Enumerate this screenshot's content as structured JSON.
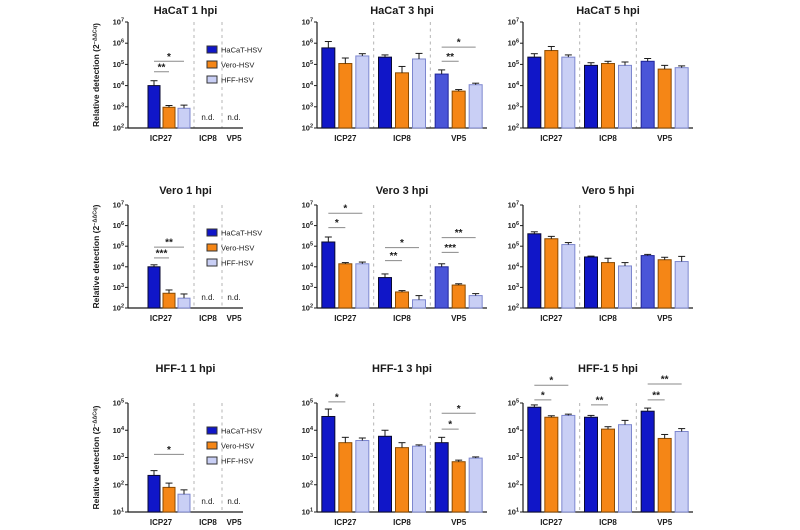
{
  "figure": {
    "background": "#ffffff"
  },
  "colors": {
    "navy": "#1016c8",
    "blue2": "#4a55d8",
    "orange": "#f58616",
    "lavender": "#c9cff5",
    "lavender_border": "#7d87cf",
    "navy_border": "#0a0a30",
    "orange_border": "#8a4a00",
    "blue2_border": "#20259a",
    "axis": "#1a1a1a",
    "separator": "#b5b5b5",
    "sig_line": "#8a8a8a",
    "title": "#2b2b2b"
  },
  "series_order": [
    "HaCaT-HSV",
    "Vero-HSV",
    "HFF-HSV"
  ],
  "legend": {
    "items": [
      {
        "label": "HaCaT-HSV",
        "color": "navy"
      },
      {
        "label": "Vero-HSV",
        "color": "orange"
      },
      {
        "label": "HFF-HSV",
        "color": "lavender"
      }
    ]
  },
  "ylabel": {
    "text": "Relative detection (2",
    "sup": "−ΔΔCq",
    "close": ")"
  },
  "nd_label": "n.d.",
  "chart_data": [
    {
      "type": "bar",
      "title": "HaCaT 1 hpi",
      "log_ylim": [
        2,
        7
      ],
      "show_legend": true,
      "show_ylabel": true,
      "categories": [
        "ICP27",
        "ICP8",
        "VP5"
      ],
      "groups": [
        {
          "name": "ICP27",
          "bars": [
            [
              "navy",
              10000.0,
              17000.0
            ],
            [
              "orange",
              950.0,
              1150.0
            ],
            [
              "lavender",
              850.0,
              1200.0
            ]
          ]
        },
        {
          "name": "ICP8",
          "nd": true,
          "bars": []
        },
        {
          "name": "VP5",
          "nd": true,
          "bars": []
        }
      ],
      "sig": [
        {
          "group": 0,
          "from": 0,
          "to": 1,
          "label": "**",
          "y": 45000.0
        },
        {
          "group": 0,
          "from": 0,
          "to": 2,
          "label": "*",
          "y": 140000.0
        }
      ]
    },
    {
      "type": "bar",
      "title": "HaCaT 3 hpi",
      "log_ylim": [
        2,
        7
      ],
      "show_legend": false,
      "show_ylabel": false,
      "categories": [
        "ICP27",
        "ICP8",
        "VP5"
      ],
      "groups": [
        {
          "name": "ICP27",
          "bars": [
            [
              "navy",
              600000.0,
              1200000.0
            ],
            [
              "orange",
              110000.0,
              200000.0
            ],
            [
              "lavender",
              250000.0,
              320000.0
            ]
          ]
        },
        {
          "name": "ICP8",
          "bars": [
            [
              "navy",
              220000.0,
              280000.0
            ],
            [
              "orange",
              40000.0,
              80000.0
            ],
            [
              "lavender",
              180000.0,
              330000.0
            ]
          ]
        },
        {
          "name": "VP5",
          "bars": [
            [
              "blue2",
              35000.0,
              55000.0
            ],
            [
              "orange",
              5500.0,
              6500.0
            ],
            [
              "lavender",
              11000.0,
              13000.0
            ]
          ]
        }
      ],
      "sig": [
        {
          "group": 2,
          "from": 0,
          "to": 1,
          "label": "**",
          "y": 140000.0
        },
        {
          "group": 2,
          "from": 0,
          "to": 2,
          "label": "*",
          "y": 650000.0
        }
      ]
    },
    {
      "type": "bar",
      "title": "HaCaT 5 hpi",
      "log_ylim": [
        2,
        7
      ],
      "show_legend": false,
      "show_ylabel": false,
      "categories": [
        "ICP27",
        "ICP8",
        "VP5"
      ],
      "groups": [
        {
          "name": "ICP27",
          "bars": [
            [
              "navy",
              220000.0,
              320000.0
            ],
            [
              "orange",
              450000.0,
              700000.0
            ],
            [
              "lavender",
              220000.0,
              280000.0
            ]
          ]
        },
        {
          "name": "ICP8",
          "bars": [
            [
              "navy",
              90000.0,
              120000.0
            ],
            [
              "orange",
              110000.0,
              140000.0
            ],
            [
              "lavender",
              90000.0,
              130000.0
            ]
          ]
        },
        {
          "name": "VP5",
          "bars": [
            [
              "blue2",
              140000.0,
              190000.0
            ],
            [
              "orange",
              60000.0,
              90000.0
            ],
            [
              "lavender",
              70000.0,
              85000.0
            ]
          ]
        }
      ],
      "sig": []
    },
    {
      "type": "bar",
      "title": "Vero 1 hpi",
      "log_ylim": [
        2,
        7
      ],
      "show_legend": true,
      "show_ylabel": true,
      "categories": [
        "ICP27",
        "ICP8",
        "VP5"
      ],
      "groups": [
        {
          "name": "ICP27",
          "bars": [
            [
              "navy",
              10000.0,
              12500.0
            ],
            [
              "orange",
              520.0,
              750.0
            ],
            [
              "lavender",
              300.0,
              480.0
            ]
          ]
        },
        {
          "name": "ICP8",
          "nd": true,
          "bars": []
        },
        {
          "name": "VP5",
          "nd": true,
          "bars": []
        }
      ],
      "sig": [
        {
          "group": 0,
          "from": 0,
          "to": 1,
          "label": "***",
          "y": 27000.0
        },
        {
          "group": 0,
          "from": 0,
          "to": 2,
          "label": "**",
          "y": 90000.0
        }
      ]
    },
    {
      "type": "bar",
      "title": "Vero 3 hpi",
      "log_ylim": [
        2,
        7
      ],
      "show_legend": false,
      "show_ylabel": false,
      "categories": [
        "ICP27",
        "ICP8",
        "VP5"
      ],
      "groups": [
        {
          "name": "ICP27",
          "bars": [
            [
              "navy",
              160000.0,
              280000.0
            ],
            [
              "orange",
              14000.0,
              16000.0
            ],
            [
              "lavender",
              14000.0,
              17000.0
            ]
          ]
        },
        {
          "name": "ICP8",
          "bars": [
            [
              "navy",
              3000.0,
              4500.0
            ],
            [
              "orange",
              600.0,
              700.0
            ],
            [
              "lavender",
              250.0,
              400.0
            ]
          ]
        },
        {
          "name": "VP5",
          "bars": [
            [
              "blue2",
              10000.0,
              14000.0
            ],
            [
              "orange",
              1300.0,
              1500.0
            ],
            [
              "lavender",
              400.0,
              500.0
            ]
          ]
        }
      ],
      "sig": [
        {
          "group": 0,
          "from": 0,
          "to": 1,
          "label": "*",
          "y": 800000.0
        },
        {
          "group": 0,
          "from": 0,
          "to": 2,
          "label": "*",
          "y": 4000000.0
        },
        {
          "group": 1,
          "from": 0,
          "to": 1,
          "label": "**",
          "y": 20000.0
        },
        {
          "group": 1,
          "from": 0,
          "to": 2,
          "label": "*",
          "y": 85000.0
        },
        {
          "group": 2,
          "from": 0,
          "to": 1,
          "label": "***",
          "y": 50000.0
        },
        {
          "group": 2,
          "from": 0,
          "to": 2,
          "label": "**",
          "y": 260000.0
        }
      ]
    },
    {
      "type": "bar",
      "title": "Vero 5 hpi",
      "log_ylim": [
        2,
        7
      ],
      "show_legend": false,
      "show_ylabel": false,
      "categories": [
        "ICP27",
        "ICP8",
        "VP5"
      ],
      "groups": [
        {
          "name": "ICP27",
          "bars": [
            [
              "navy",
              400000.0,
              500000.0
            ],
            [
              "orange",
              230000.0,
              300000.0
            ],
            [
              "lavender",
              120000.0,
              150000.0
            ]
          ]
        },
        {
          "name": "ICP8",
          "bars": [
            [
              "navy",
              30000.0,
              33000.0
            ],
            [
              "orange",
              16000.0,
              26000.0
            ],
            [
              "lavender",
              11000.0,
              16000.0
            ]
          ]
        },
        {
          "name": "VP5",
          "bars": [
            [
              "blue2",
              35000.0,
              40000.0
            ],
            [
              "orange",
              22000.0,
              29000.0
            ],
            [
              "lavender",
              18000.0,
              32000.0
            ]
          ]
        }
      ],
      "sig": []
    },
    {
      "type": "bar",
      "title": "HFF-1 1 hpi",
      "log_ylim": [
        1,
        5
      ],
      "show_legend": true,
      "show_ylabel": true,
      "categories": [
        "ICP27",
        "ICP8",
        "VP5"
      ],
      "groups": [
        {
          "name": "ICP27",
          "bars": [
            [
              "navy",
              220.0,
              330.0
            ],
            [
              "orange",
              80.0,
              115.0
            ],
            [
              "lavender",
              45.0,
              65.0
            ]
          ]
        },
        {
          "name": "ICP8",
          "nd": true,
          "bars": []
        },
        {
          "name": "VP5",
          "nd": true,
          "bars": []
        }
      ],
      "sig": [
        {
          "group": 0,
          "from": 0,
          "to": 2,
          "label": "*",
          "y": 1300.0
        }
      ]
    },
    {
      "type": "bar",
      "title": "HFF-1 3 hpi",
      "log_ylim": [
        1,
        5
      ],
      "show_legend": false,
      "show_ylabel": false,
      "categories": [
        "ICP27",
        "ICP8",
        "VP5"
      ],
      "groups": [
        {
          "name": "ICP27",
          "bars": [
            [
              "navy",
              32000.0,
              60000.0
            ],
            [
              "orange",
              3500.0,
              5500.0
            ],
            [
              "lavender",
              4200.0,
              5200.0
            ]
          ]
        },
        {
          "name": "ICP8",
          "bars": [
            [
              "navy",
              6000.0,
              10000.0
            ],
            [
              "orange",
              2300.0,
              3500.0
            ],
            [
              "lavender",
              2600.0,
              2900.0
            ]
          ]
        },
        {
          "name": "VP5",
          "bars": [
            [
              "navy",
              3500.0,
              5500.0
            ],
            [
              "orange",
              700.0,
              800.0
            ],
            [
              "lavender",
              950.0,
              1050.0
            ]
          ]
        }
      ],
      "sig": [
        {
          "group": 0,
          "from": 0,
          "to": 1,
          "label": "*",
          "y": 110000.0
        },
        {
          "group": 2,
          "from": 0,
          "to": 1,
          "label": "*",
          "y": 11000.0
        },
        {
          "group": 2,
          "from": 0,
          "to": 2,
          "label": "*",
          "y": 42000.0
        }
      ]
    },
    {
      "type": "bar",
      "title": "HFF-1 5 hpi",
      "log_ylim": [
        1,
        5
      ],
      "show_legend": false,
      "show_ylabel": false,
      "categories": [
        "ICP27",
        "ICP8",
        "VP5"
      ],
      "groups": [
        {
          "name": "ICP27",
          "bars": [
            [
              "navy",
              70000.0,
              85000.0
            ],
            [
              "orange",
              30000.0,
              34000.0
            ],
            [
              "lavender",
              35000.0,
              39000.0
            ]
          ]
        },
        {
          "name": "ICP8",
          "bars": [
            [
              "navy",
              30000.0,
              35000.0
            ],
            [
              "orange",
              11000.0,
              13500.0
            ],
            [
              "lavender",
              16000.0,
              23000.0
            ]
          ]
        },
        {
          "name": "VP5",
          "bars": [
            [
              "navy",
              50000.0,
              65000.0
            ],
            [
              "orange",
              5000.0,
              7000.0
            ],
            [
              "lavender",
              9000.0,
              11500.0
            ]
          ]
        }
      ],
      "sig": [
        {
          "group": 0,
          "from": 0,
          "to": 1,
          "label": "*",
          "y": 130000.0
        },
        {
          "group": 0,
          "from": 0,
          "to": 2,
          "label": "*",
          "y": 450000.0
        },
        {
          "group": 1,
          "from": 0,
          "to": 1,
          "label": "**",
          "y": 85000.0
        },
        {
          "group": 2,
          "from": 0,
          "to": 1,
          "label": "**",
          "y": 130000.0
        },
        {
          "group": 2,
          "from": 0,
          "to": 2,
          "label": "**",
          "y": 500000.0
        }
      ]
    }
  ]
}
